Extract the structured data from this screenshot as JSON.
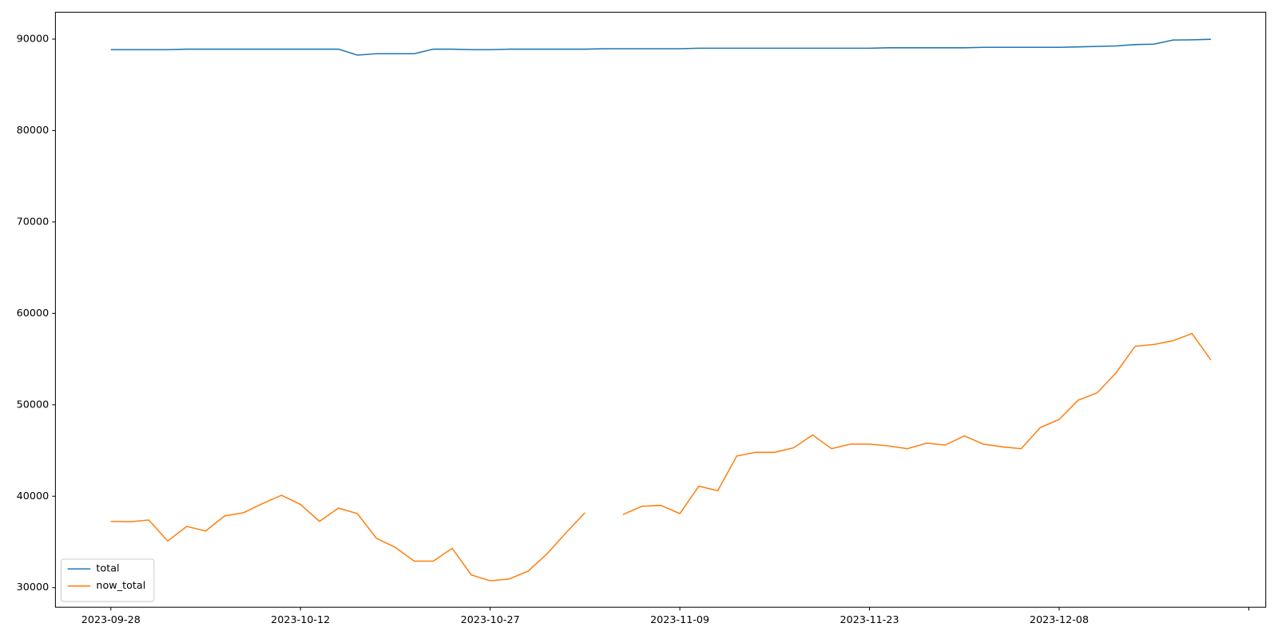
{
  "chart_data": {
    "type": "line",
    "categories": [
      "2023-09-28",
      null,
      null,
      null,
      null,
      null,
      null,
      null,
      null,
      null,
      "2023-10-12",
      null,
      null,
      null,
      null,
      null,
      null,
      null,
      null,
      null,
      "2023-10-27",
      null,
      null,
      null,
      null,
      null,
      null,
      null,
      null,
      null,
      "2023-11-09",
      null,
      null,
      null,
      null,
      null,
      null,
      null,
      null,
      null,
      "2023-11-23",
      null,
      null,
      null,
      null,
      null,
      null,
      null,
      null,
      null,
      "2023-12-08",
      null,
      null,
      null,
      null,
      null,
      null,
      null,
      null
    ],
    "series": [
      {
        "name": "total",
        "color": "#1f77b4",
        "values": [
          88850,
          88850,
          88850,
          88850,
          88900,
          88900,
          88900,
          88900,
          88900,
          88900,
          88900,
          88900,
          88900,
          88250,
          88400,
          88400,
          88400,
          88900,
          88900,
          88850,
          88850,
          88900,
          88900,
          88900,
          88900,
          88900,
          88950,
          88950,
          88950,
          88950,
          88950,
          89000,
          89000,
          89000,
          89000,
          89000,
          89000,
          89000,
          89000,
          89000,
          89000,
          89050,
          89050,
          89050,
          89050,
          89050,
          89100,
          89100,
          89100,
          89100,
          89100,
          89150,
          89200,
          89250,
          89400,
          89450,
          89900,
          89920,
          89980
        ]
      },
      {
        "name": "now_total",
        "color": "#ff7f0e",
        "values": [
          37250,
          37200,
          37400,
          35100,
          36700,
          36200,
          37850,
          38200,
          39200,
          40100,
          39100,
          37250,
          38700,
          38100,
          35400,
          34400,
          32900,
          32900,
          34300,
          31400,
          30750,
          30950,
          31800,
          33700,
          36000,
          38200,
          null,
          38000,
          38900,
          39000,
          38100,
          41100,
          40600,
          44400,
          44800,
          44800,
          45300,
          46700,
          45200,
          45700,
          45700,
          45500,
          45200,
          45800,
          45600,
          46600,
          45700,
          45400,
          45200,
          47500,
          48400,
          50500,
          51300,
          53500,
          56400,
          56600,
          57000,
          57800,
          54900
        ]
      }
    ],
    "ylim": [
      27860,
      92940
    ],
    "yticks": [
      30000,
      40000,
      50000,
      60000,
      70000,
      80000,
      90000
    ],
    "legend": "lower left"
  }
}
